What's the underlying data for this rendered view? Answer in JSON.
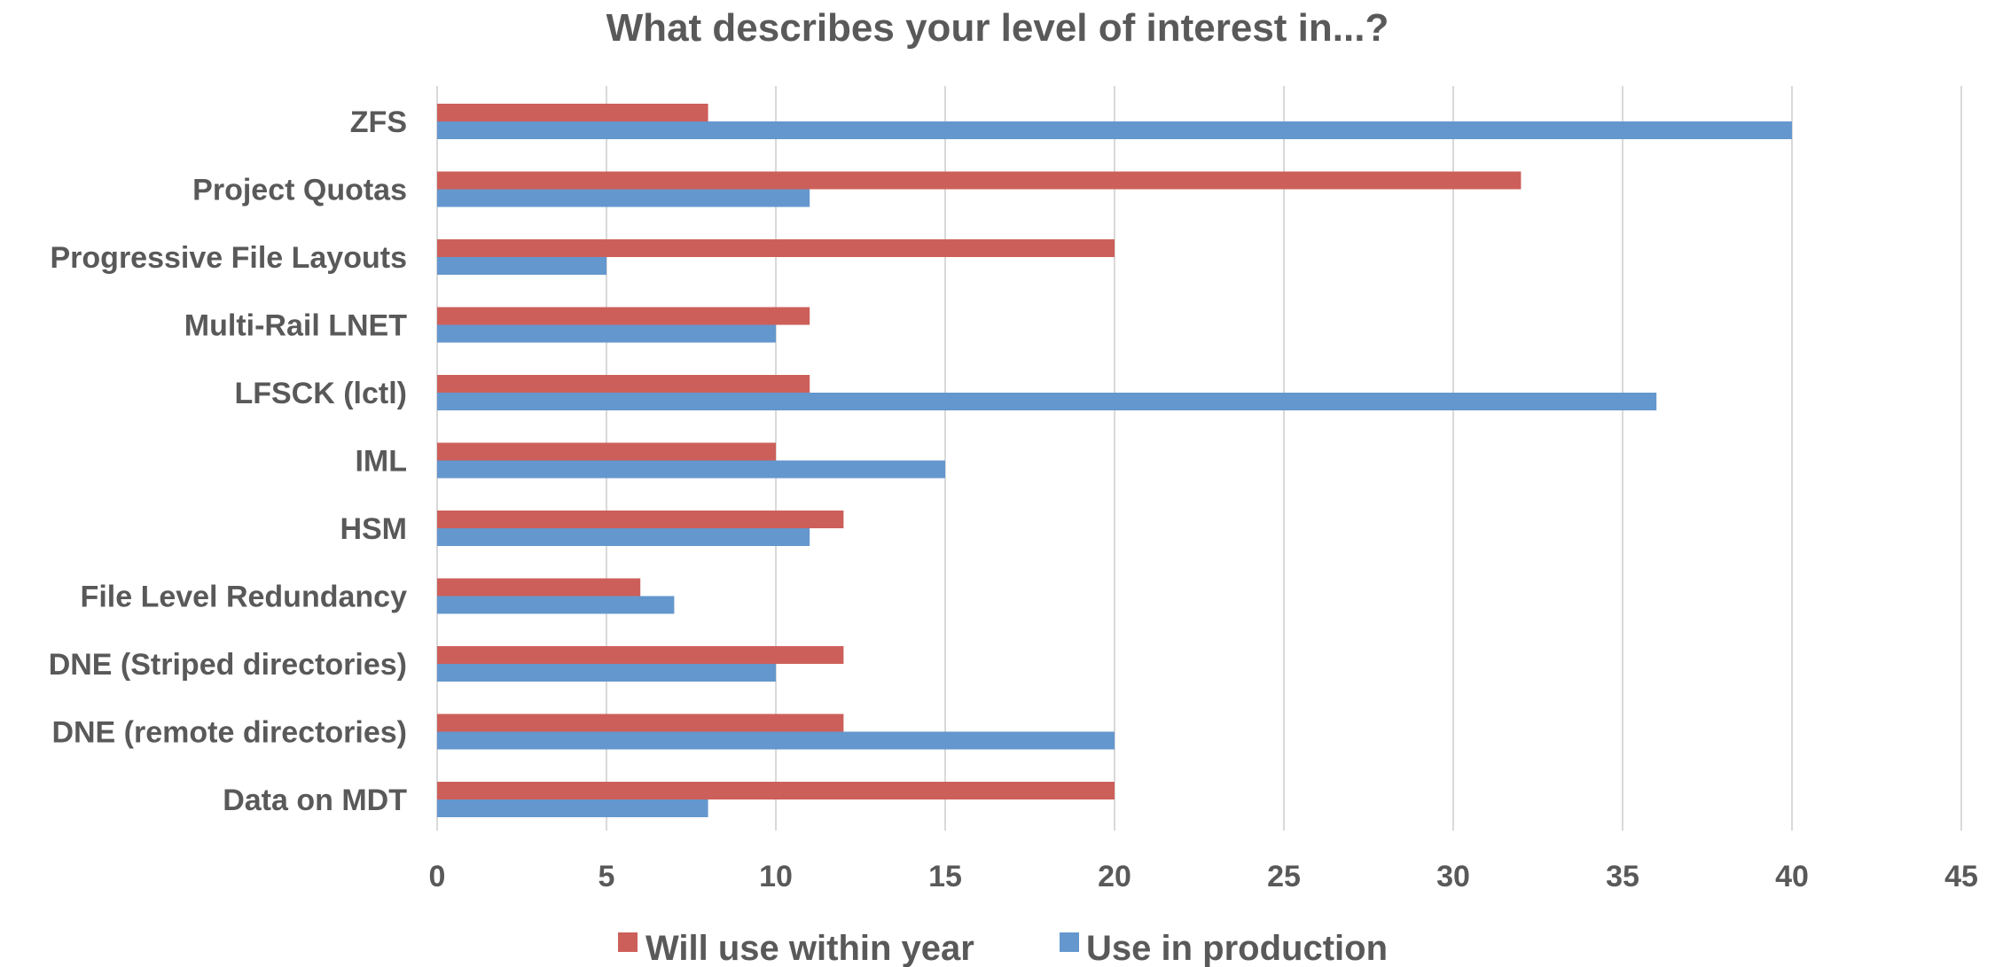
{
  "chart_data": {
    "type": "bar",
    "orientation": "horizontal",
    "title": "What describes your level of interest in...?",
    "xlabel": "",
    "ylabel": "",
    "categories": [
      "ZFS",
      "Project Quotas",
      "Progressive File Layouts",
      "Multi-Rail LNET",
      "LFSCK (lctl)",
      "IML",
      "HSM",
      "File Level Redundancy",
      "DNE (Striped directories)",
      "DNE (remote directories)",
      "Data on MDT"
    ],
    "series": [
      {
        "name": "Will use within year",
        "color": "#cd5f5a",
        "values": [
          8,
          32,
          20,
          11,
          11,
          10,
          12,
          6,
          12,
          12,
          20
        ]
      },
      {
        "name": "Use in production",
        "color": "#6497cd",
        "values": [
          40,
          11,
          5,
          10,
          36,
          15,
          11,
          7,
          10,
          20,
          8
        ]
      }
    ],
    "xlim": [
      0,
      45
    ],
    "xticks": [
      0,
      5,
      10,
      15,
      20,
      25,
      30,
      35,
      40,
      45
    ],
    "grid": true,
    "legend_position": "bottom"
  }
}
